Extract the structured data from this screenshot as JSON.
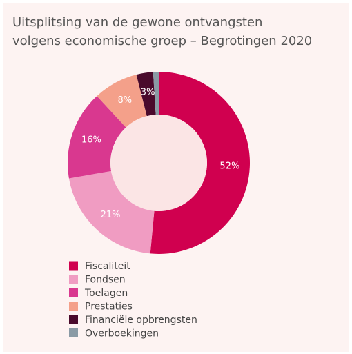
{
  "chart_data": {
    "type": "donut",
    "title": "Uitsplitsing van de gewone ontvangsten\nvolgens economische groep – Begrotingen 2020",
    "categories": [
      "Fiscaliteit",
      "Fondsen",
      "Toelagen",
      "Prestaties",
      "Financiële opbrengsten",
      "Overboekingen"
    ],
    "values": [
      52,
      21,
      16,
      8,
      3,
      1
    ],
    "value_labels": [
      "52%",
      "21%",
      "16%",
      "8%",
      "3%",
      null
    ],
    "colors": [
      "#d0004f",
      "#f09cc2",
      "#d9388f",
      "#f4a08a",
      "#4a0a2c",
      "#8a9aa5"
    ],
    "legend": "bottom-left"
  }
}
